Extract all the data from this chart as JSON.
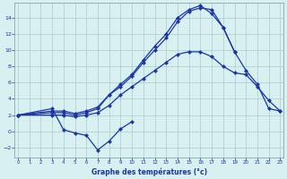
{
  "x": [
    0,
    1,
    2,
    3,
    4,
    5,
    6,
    7,
    8,
    9,
    10,
    11,
    12,
    13,
    14,
    15,
    16,
    17,
    18,
    19,
    20,
    21,
    22,
    23
  ],
  "line1": [
    2.0,
    null,
    null,
    2.8,
    0.2,
    -0.2,
    -0.5,
    -2.3,
    -1.2,
    0.3,
    1.2,
    null,
    null,
    null,
    null,
    null,
    null,
    null,
    null,
    null,
    null,
    null,
    null,
    null
  ],
  "line2": [
    2.0,
    null,
    null,
    2.0,
    2.0,
    1.8,
    2.0,
    2.3,
    3.2,
    4.5,
    5.5,
    6.5,
    7.5,
    8.5,
    9.5,
    9.8,
    9.8,
    9.2,
    8.0,
    7.2,
    7.0,
    5.5,
    3.8,
    2.5
  ],
  "line3": [
    2.0,
    null,
    null,
    2.3,
    2.3,
    2.0,
    2.3,
    2.8,
    4.5,
    5.5,
    6.8,
    8.5,
    10.0,
    11.5,
    13.5,
    14.8,
    15.2,
    15.0,
    12.8,
    9.8,
    null,
    null,
    null,
    null
  ],
  "line4": [
    2.0,
    null,
    null,
    2.5,
    2.5,
    2.2,
    2.5,
    3.0,
    4.5,
    5.8,
    7.0,
    8.8,
    10.5,
    12.0,
    14.0,
    15.0,
    15.5,
    14.5,
    12.8,
    9.8,
    7.5,
    5.8,
    2.8,
    2.5
  ],
  "background": "#d8f0f0",
  "grid_color": "#aacccc",
  "line_color": "#1a35b0",
  "xlabel": "Graphe des températures (°c)",
  "ylabel_ticks": [
    -2,
    0,
    2,
    4,
    6,
    8,
    10,
    12,
    14
  ],
  "xticks": [
    0,
    1,
    2,
    3,
    4,
    5,
    6,
    7,
    8,
    9,
    10,
    11,
    12,
    13,
    14,
    15,
    16,
    17,
    18,
    19,
    20,
    21,
    22,
    23
  ],
  "xlim": [
    -0.3,
    23.3
  ],
  "ylim": [
    -3.2,
    15.8
  ],
  "markersize": 2.5,
  "linewidth": 0.9
}
